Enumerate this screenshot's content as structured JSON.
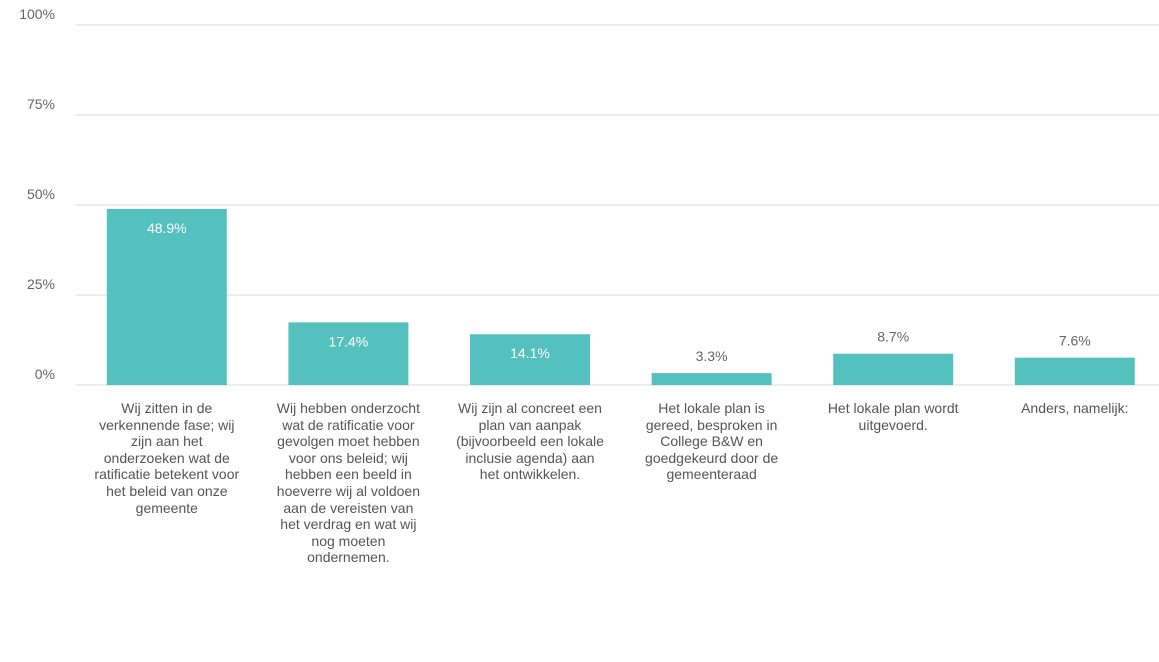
{
  "chart_data": {
    "type": "bar",
    "categories": [
      "Wij zitten in de verkennende fase; wij zijn aan het onderzoeken wat de ratificatie betekent voor het beleid van onze gemeente",
      "Wij hebben onderzocht wat de ratificatie voor gevolgen moet hebben voor ons beleid; wij hebben een beeld in hoeverre wij al voldoen aan de vereisten van het verdrag en wat wij nog moeten ondernemen.",
      "Wij zijn al concreet een plan van aanpak (bijvoorbeeld een lokale inclusie agenda) aan het ontwikkelen.",
      "Het lokale plan is gereed, besproken in College B&W en goedgekeurd door de gemeenteraad",
      "Het lokale plan wordt uitgevoerd.",
      "Anders, namelijk:"
    ],
    "values": [
      48.9,
      17.4,
      14.1,
      3.3,
      8.7,
      7.6
    ],
    "value_labels": [
      "48.9%",
      "17.4%",
      "14.1%",
      "3.3%",
      "8.7%",
      "7.6%"
    ],
    "color": "#55c1be",
    "ylim": [
      0,
      100
    ],
    "yticks": [
      {
        "value": 0,
        "label": "0%"
      },
      {
        "value": 25,
        "label": "25%"
      },
      {
        "value": 50,
        "label": "50%"
      },
      {
        "value": 75,
        "label": "75%"
      },
      {
        "value": 100,
        "label": "100%"
      }
    ],
    "grid": true
  }
}
